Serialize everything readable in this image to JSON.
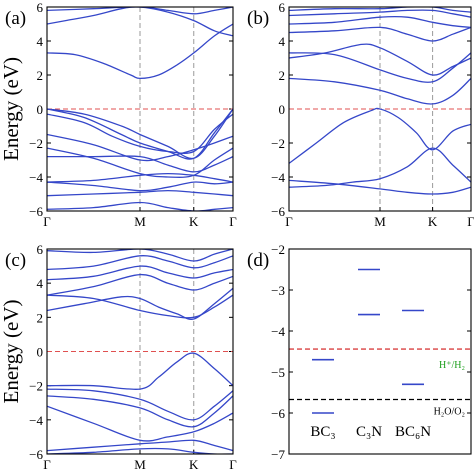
{
  "chart_data": [
    {
      "panel": "a",
      "type": "line",
      "ylabel": "Energy (eV)",
      "ylim": [
        -6,
        6
      ],
      "yticks": [
        "-6",
        "-4",
        "-2",
        "0",
        "2",
        "4",
        "6"
      ],
      "kpoints": [
        "Γ",
        "M",
        "K",
        "Γ"
      ],
      "kpos": [
        0,
        0.5,
        0.789,
        1.0
      ],
      "fermi_level": 0,
      "series": [
        {
          "x": [
            0,
            0.25,
            0.5,
            0.65,
            0.789,
            0.9,
            1.0
          ],
          "y": [
            5.8,
            5.9,
            6.0,
            5.8,
            5.6,
            5.8,
            6.0
          ]
        },
        {
          "x": [
            0,
            0.1,
            0.25,
            0.4,
            0.5,
            0.65,
            0.789,
            0.9,
            1.0
          ],
          "y": [
            5.0,
            5.2,
            5.5,
            5.9,
            6.0,
            5.7,
            5.2,
            4.6,
            4.3
          ]
        },
        {
          "x": [
            0,
            0.15,
            0.3,
            0.45,
            0.5,
            0.6,
            0.7,
            0.789,
            0.9,
            1.0
          ],
          "y": [
            3.3,
            3.2,
            2.7,
            2.0,
            1.8,
            2.0,
            2.6,
            3.3,
            4.3,
            5.0
          ]
        },
        {
          "x": [
            0,
            0.2,
            0.4,
            0.5,
            0.65,
            0.789,
            0.9,
            1.0
          ],
          "y": [
            0,
            -0.3,
            -1.0,
            -1.5,
            -2.2,
            -2.9,
            -1.6,
            0
          ]
        },
        {
          "x": [
            0,
            0.2,
            0.4,
            0.5,
            0.65,
            0.789,
            0.9,
            1.0
          ],
          "y": [
            0,
            -0.5,
            -1.5,
            -2.0,
            -2.5,
            -2.9,
            -1.4,
            0
          ]
        },
        {
          "x": [
            0,
            0.2,
            0.35,
            0.5,
            0.65,
            0.789,
            0.9,
            1.0
          ],
          "y": [
            -0.3,
            -0.8,
            -1.6,
            -2.2,
            -2.5,
            -2.5,
            -1.2,
            -0.3
          ]
        },
        {
          "x": [
            0,
            0.25,
            0.5,
            0.65,
            0.789,
            0.9,
            1.0
          ],
          "y": [
            -1.5,
            -2.1,
            -3.0,
            -2.8,
            -2.4,
            -2.0,
            -1.6
          ]
        },
        {
          "x": [
            0,
            0.25,
            0.5,
            0.65,
            0.789,
            0.9,
            1.0
          ],
          "y": [
            -2.8,
            -2.8,
            -2.8,
            -3.3,
            -3.7,
            -3.3,
            -2.8
          ]
        },
        {
          "x": [
            0,
            0.25,
            0.5,
            0.65,
            0.789,
            0.9,
            1.0
          ],
          "y": [
            -2.3,
            -2.9,
            -3.8,
            -4.0,
            -3.9,
            -3.0,
            -2.3
          ]
        },
        {
          "x": [
            0,
            0.25,
            0.5,
            0.65,
            0.789,
            0.9,
            1.0
          ],
          "y": [
            -4.3,
            -4.2,
            -3.9,
            -3.8,
            -3.9,
            -4.1,
            -4.3
          ]
        },
        {
          "x": [
            0,
            0.25,
            0.5,
            0.65,
            0.789,
            0.9,
            1.0
          ],
          "y": [
            -4.3,
            -4.5,
            -4.8,
            -4.6,
            -4.3,
            -4.4,
            -4.3
          ]
        },
        {
          "x": [
            0,
            0.25,
            0.5,
            0.65,
            0.789,
            0.9,
            1.0
          ],
          "y": [
            -5.1,
            -5.0,
            -4.9,
            -4.8,
            -4.9,
            -5.0,
            -5.1
          ]
        },
        {
          "x": [
            0,
            0.25,
            0.5,
            0.65,
            0.789,
            0.9,
            1.0
          ],
          "y": [
            -5.9,
            -5.8,
            -5.5,
            -5.8,
            -6.0,
            -5.9,
            -5.8
          ]
        }
      ]
    },
    {
      "panel": "b",
      "type": "line",
      "ylim": [
        -6,
        6
      ],
      "yticks": [
        "-6",
        "-4",
        "-2",
        "0",
        "2",
        "4",
        "6"
      ],
      "kpoints": [
        "Γ",
        "M",
        "K",
        "Γ"
      ],
      "kpos": [
        0,
        0.5,
        0.789,
        1.0
      ],
      "fermi_level": 0,
      "series": [
        {
          "x": [
            0,
            0.25,
            0.5,
            0.65,
            0.789,
            0.9,
            1.0
          ],
          "y": [
            5.8,
            5.9,
            5.9,
            6.0,
            6.0,
            5.8,
            5.7
          ]
        },
        {
          "x": [
            0,
            0.25,
            0.5,
            0.65,
            0.789,
            0.9,
            1.0
          ],
          "y": [
            5.5,
            5.6,
            5.7,
            5.8,
            5.8,
            5.6,
            5.4
          ]
        },
        {
          "x": [
            0,
            0.25,
            0.5,
            0.65,
            0.789,
            0.9,
            1.0
          ],
          "y": [
            5.0,
            5.1,
            5.4,
            5.4,
            5.1,
            4.9,
            4.8
          ]
        },
        {
          "x": [
            0,
            0.25,
            0.5,
            0.65,
            0.789,
            0.9,
            1.0
          ],
          "y": [
            4.5,
            4.6,
            4.8,
            4.4,
            4.0,
            4.4,
            4.8
          ]
        },
        {
          "x": [
            0,
            0.2,
            0.4,
            0.5,
            0.65,
            0.789,
            0.9,
            1.0
          ],
          "y": [
            3.0,
            3.3,
            3.8,
            3.6,
            2.8,
            2.0,
            2.5,
            3.0
          ]
        },
        {
          "x": [
            0,
            0.25,
            0.5,
            0.65,
            0.789,
            0.9,
            1.0
          ],
          "y": [
            3.3,
            3.2,
            2.3,
            1.8,
            1.6,
            2.4,
            3.3
          ]
        },
        {
          "x": [
            0,
            0.25,
            0.5,
            0.65,
            0.789,
            0.9,
            1.0
          ],
          "y": [
            1.8,
            1.6,
            1.1,
            0.6,
            0.3,
            0.8,
            1.8
          ]
        },
        {
          "x": [
            0,
            0.15,
            0.3,
            0.45,
            0.5,
            0.6,
            0.7,
            0.789,
            0.9,
            1.0
          ],
          "y": [
            -3.2,
            -2.0,
            -0.8,
            -0.1,
            0,
            -0.5,
            -1.4,
            -2.4,
            -1.3,
            -0.9
          ]
        },
        {
          "x": [
            0,
            0.2,
            0.35,
            0.5,
            0.65,
            0.789,
            0.9,
            1.0
          ],
          "y": [
            -4.6,
            -4.5,
            -4.3,
            -4.1,
            -3.4,
            -2.3,
            -3.3,
            -4.3
          ]
        },
        {
          "x": [
            0,
            0.25,
            0.5,
            0.65,
            0.789,
            0.9,
            1.0
          ],
          "y": [
            -4.2,
            -4.4,
            -4.7,
            -4.9,
            -5.0,
            -4.9,
            -4.6
          ]
        }
      ]
    },
    {
      "panel": "c",
      "type": "line",
      "ylabel": "Energy (eV)",
      "ylim": [
        -6,
        6
      ],
      "yticks": [
        "-6",
        "-4",
        "-2",
        "0",
        "2",
        "4",
        "6"
      ],
      "kpoints": [
        "Γ",
        "M",
        "K",
        "Γ"
      ],
      "kpos": [
        0,
        0.5,
        0.789,
        1.0
      ],
      "fermi_level": 0,
      "series": [
        {
          "x": [
            0,
            0.25,
            0.5,
            0.65,
            0.789,
            0.9,
            1.0
          ],
          "y": [
            5.9,
            5.8,
            6.0,
            5.7,
            5.3,
            5.7,
            6.0
          ]
        },
        {
          "x": [
            0,
            0.25,
            0.5,
            0.65,
            0.789,
            0.9,
            1.0
          ],
          "y": [
            4.8,
            5.0,
            5.6,
            5.3,
            4.9,
            5.2,
            5.6
          ]
        },
        {
          "x": [
            0,
            0.25,
            0.5,
            0.65,
            0.789,
            0.9,
            1.0
          ],
          "y": [
            4.2,
            4.4,
            5.0,
            4.6,
            4.3,
            4.6,
            4.8
          ]
        },
        {
          "x": [
            0,
            0.25,
            0.5,
            0.65,
            0.789,
            0.9,
            1.0
          ],
          "y": [
            3.3,
            3.8,
            4.5,
            4.0,
            3.6,
            4.0,
            4.4
          ]
        },
        {
          "x": [
            0,
            0.2,
            0.4,
            0.5,
            0.6,
            0.7,
            0.789,
            0.9,
            1.0
          ],
          "y": [
            2.4,
            2.8,
            3.2,
            3.1,
            2.6,
            2.2,
            1.9,
            2.8,
            3.7
          ]
        },
        {
          "x": [
            0,
            0.25,
            0.5,
            0.65,
            0.789,
            0.9,
            1.0
          ],
          "y": [
            3.3,
            3.1,
            2.4,
            2.1,
            2.0,
            2.6,
            3.3
          ]
        },
        {
          "x": [
            0,
            0.25,
            0.5,
            0.6,
            0.7,
            0.789,
            0.9,
            1.0
          ],
          "y": [
            -2.0,
            -2.0,
            -2.2,
            -1.5,
            -0.6,
            -0.1,
            -1.0,
            -2.0
          ]
        },
        {
          "x": [
            0,
            0.25,
            0.5,
            0.65,
            0.789,
            0.9,
            1.0
          ],
          "y": [
            -2.2,
            -2.3,
            -2.8,
            -3.5,
            -4.0,
            -3.2,
            -2.3
          ]
        },
        {
          "x": [
            0,
            0.25,
            0.5,
            0.65,
            0.789,
            0.9,
            1.0
          ],
          "y": [
            -2.6,
            -2.8,
            -3.3,
            -4.0,
            -4.4,
            -3.6,
            -2.6
          ]
        },
        {
          "x": [
            0,
            0.25,
            0.5,
            0.65,
            0.789,
            0.9,
            1.0
          ],
          "y": [
            -3.2,
            -4.2,
            -5.2,
            -5.0,
            -4.7,
            -4.2,
            -3.6
          ]
        },
        {
          "x": [
            0,
            0.25,
            0.5,
            0.65,
            0.789,
            0.9,
            1.0
          ],
          "y": [
            -5.8,
            -5.6,
            -5.4,
            -5.3,
            -5.2,
            -5.5,
            -5.8
          ]
        },
        {
          "x": [
            0,
            0.25,
            0.5,
            0.65,
            0.789,
            0.9,
            1.0
          ],
          "y": [
            -6.0,
            -5.9,
            -5.7,
            -5.7,
            -5.9,
            -6.0,
            -6.0
          ]
        }
      ]
    },
    {
      "panel": "d",
      "type": "scatter",
      "ylim": [
        -7,
        -2
      ],
      "yticks": [
        "-7",
        "-6",
        "-5",
        "-4",
        "-3",
        "-2"
      ],
      "categories": [
        "BC3",
        "C3N",
        "BC6N"
      ],
      "category_labels": [
        "BC₃",
        "C₃N",
        "BC₆N"
      ],
      "band_edges": [
        {
          "material": "BC3",
          "level": -4.7
        },
        {
          "material": "C3N",
          "level": -2.5
        },
        {
          "material": "C3N",
          "level": -3.6
        },
        {
          "material": "BC6N",
          "level": -3.5
        },
        {
          "material": "BC6N",
          "level": -5.3
        }
      ],
      "reference_lines": [
        {
          "label": "H⁺/H₂",
          "level": -4.44,
          "color": "#d94040"
        },
        {
          "label": "H₂O/O₂",
          "level": -5.67,
          "color": "#000000"
        }
      ]
    }
  ],
  "colors": {
    "band": "#3547c9",
    "fermi": "#e05050",
    "kline": "#9a9a9a",
    "hplus": "#1a9e1a"
  },
  "panels": [
    {
      "label": "(a)"
    },
    {
      "label": "(b)"
    },
    {
      "label": "(c)"
    },
    {
      "label": "(d)"
    }
  ]
}
